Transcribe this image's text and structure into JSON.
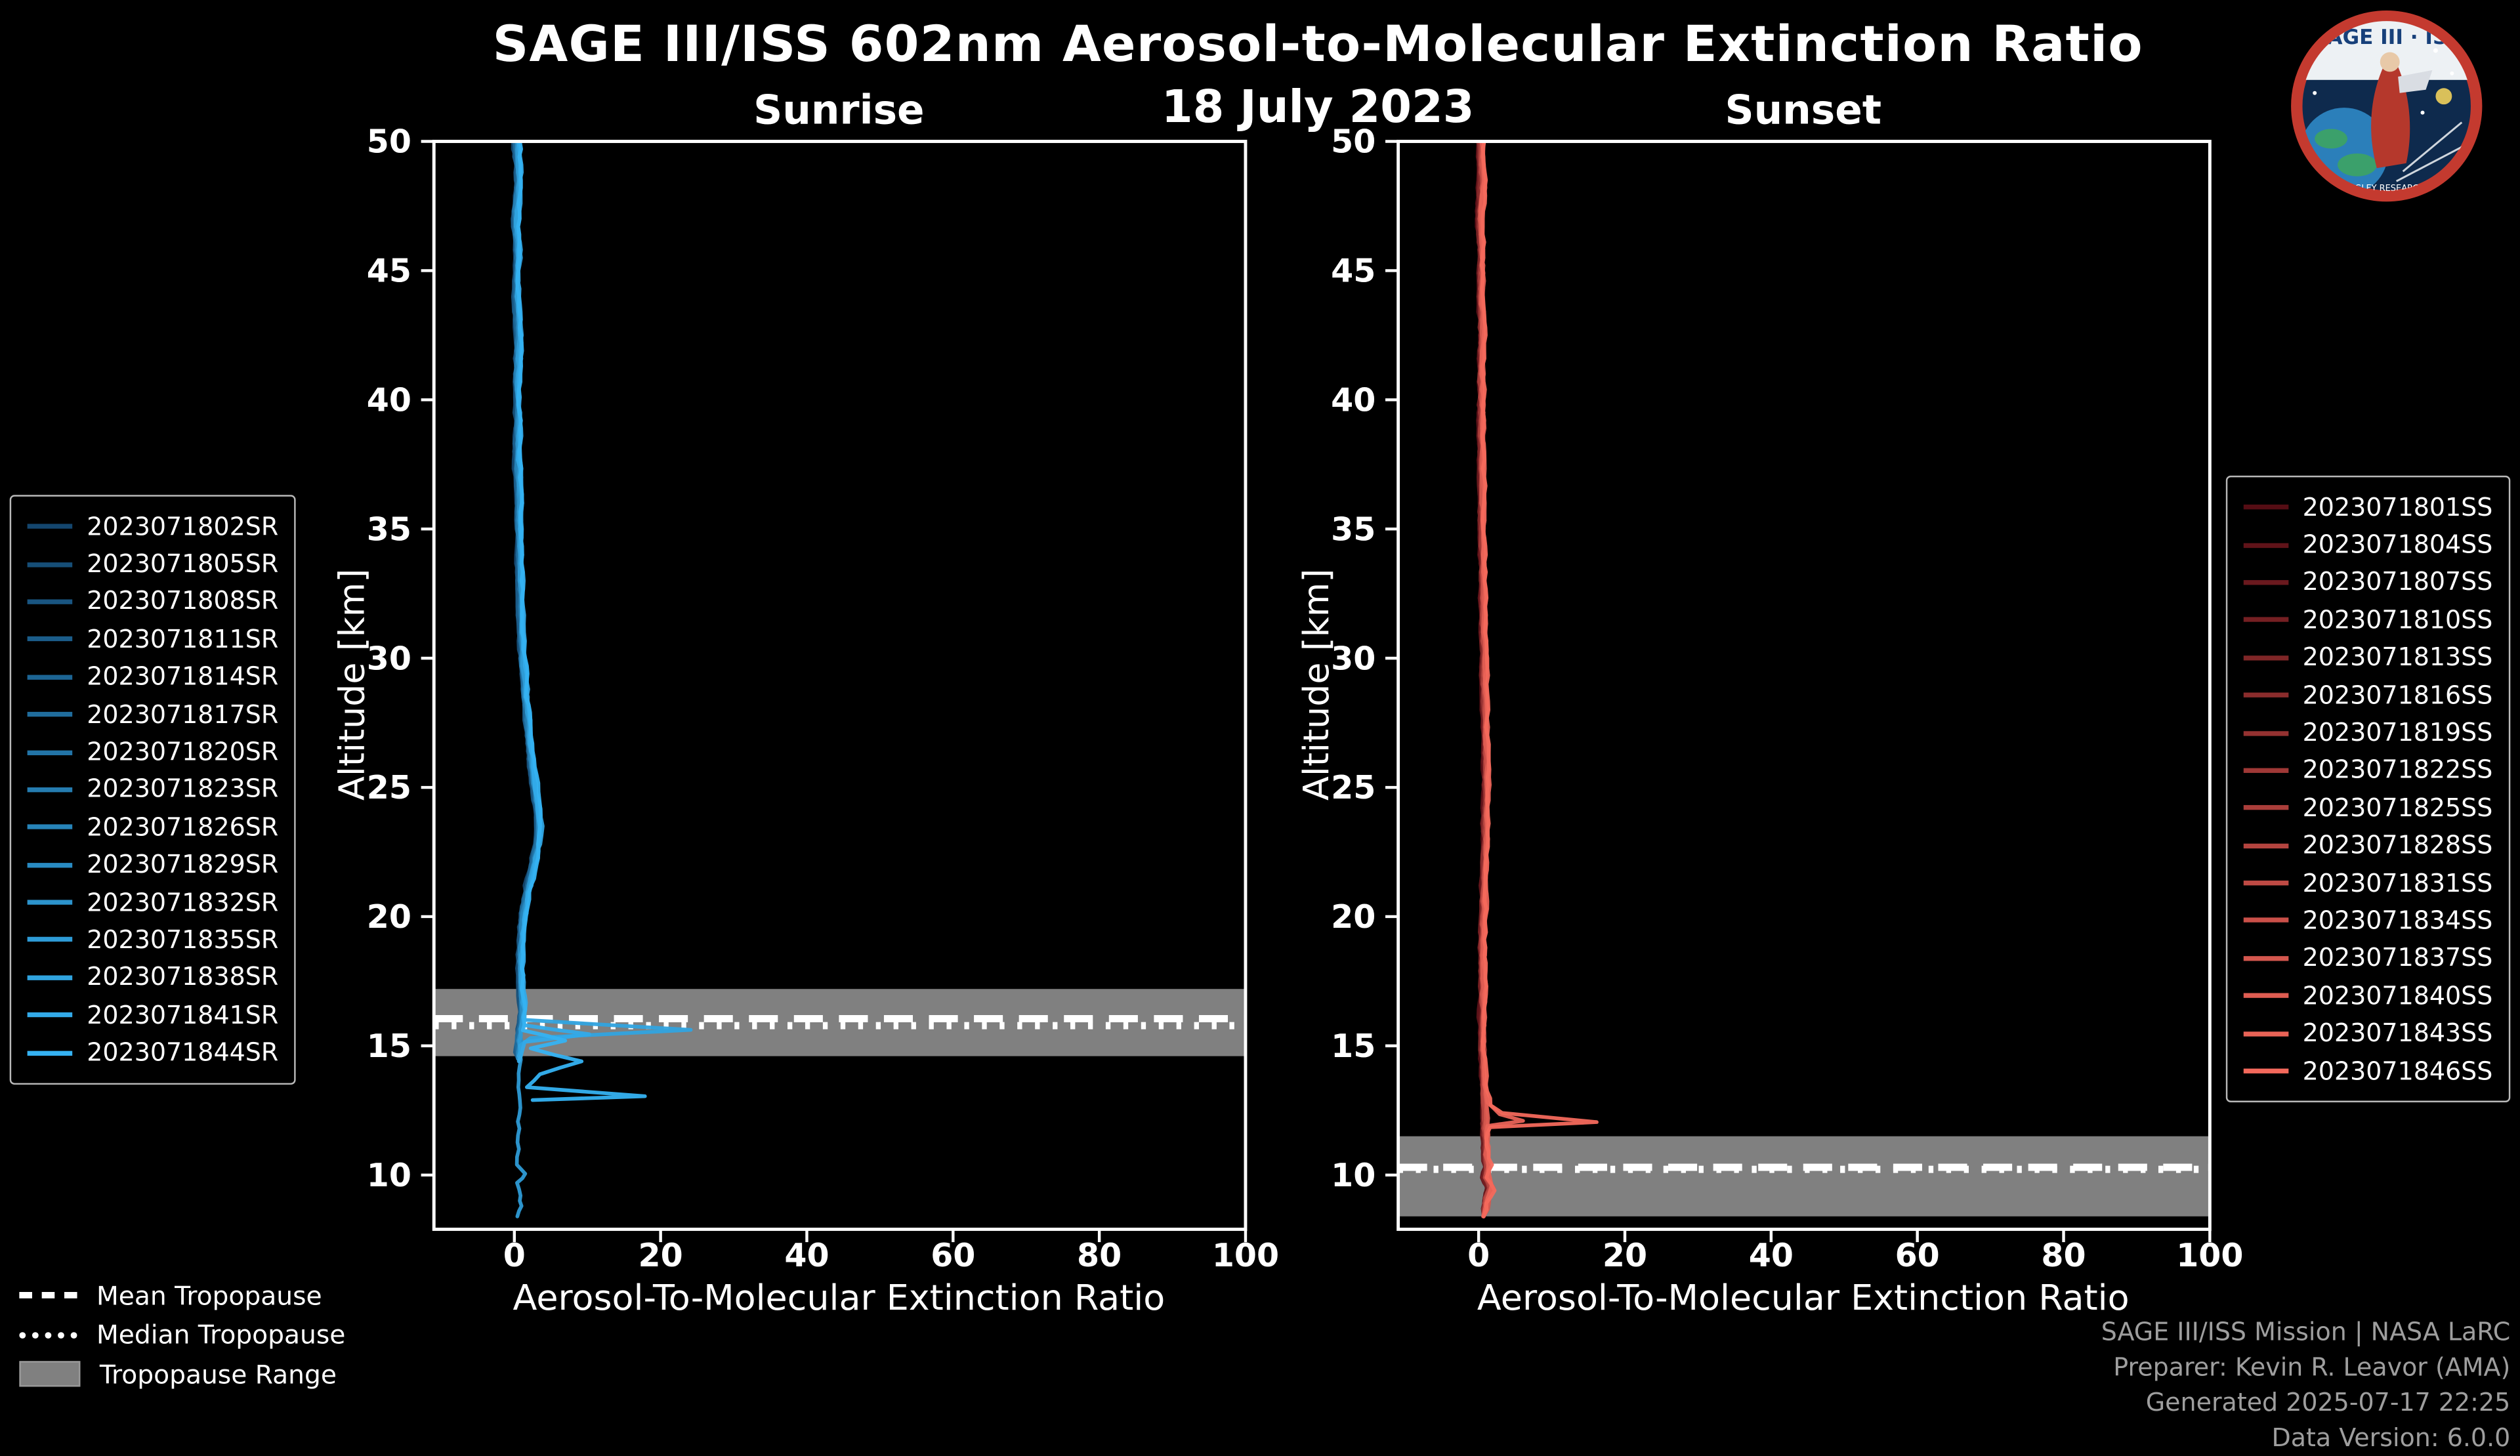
{
  "title": "SAGE III/ISS 602nm Aerosol-to-Molecular Extinction Ratio",
  "subtitle": "18 July 2023",
  "logo": {
    "title": "SAGE III · ISS",
    "ring_text": "NASA LANGLEY RESEARCH CENTER"
  },
  "tropopause_legend": [
    {
      "label": "Mean Tropopause",
      "style": "dashed"
    },
    {
      "label": "Median Tropopause",
      "style": "dotted"
    },
    {
      "label": "Tropopause Range",
      "style": "patch"
    }
  ],
  "credits": [
    "SAGE III/ISS Mission | NASA LaRC",
    "Preparer: Kevin R. Leavor (AMA)",
    "Generated 2025-07-17 22:25",
    "Data Version: 6.0.0"
  ],
  "chart_data": [
    {
      "type": "line",
      "title": "Sunrise",
      "xlabel": "Aerosol-To-Molecular Extinction Ratio",
      "ylabel": "Altitude [km]",
      "xlim": [
        -11,
        100
      ],
      "ylim": [
        7.9,
        50
      ],
      "xticks": [
        0,
        20,
        40,
        60,
        80,
        100
      ],
      "yticks": [
        10,
        15,
        20,
        25,
        30,
        35,
        40,
        45,
        50
      ],
      "color_scale": [
        "#14466e",
        "#35b2f2"
      ],
      "tropopause": {
        "range": [
          14.6,
          17.2
        ],
        "mean": 16.05,
        "median": 15.78
      },
      "base_profile": [
        [
          0.3,
          50
        ],
        [
          0.6,
          48.5
        ],
        [
          0.2,
          47
        ],
        [
          0.5,
          45.5
        ],
        [
          0.3,
          44
        ],
        [
          0.6,
          42.5
        ],
        [
          0.4,
          41
        ],
        [
          0.5,
          39.5
        ],
        [
          0.4,
          38
        ],
        [
          0.6,
          36
        ],
        [
          0.7,
          34
        ],
        [
          0.9,
          32
        ],
        [
          1.1,
          30
        ],
        [
          1.5,
          28.5
        ],
        [
          2.0,
          27
        ],
        [
          2.5,
          25.5
        ],
        [
          3.0,
          24.5
        ],
        [
          3.4,
          23.5
        ],
        [
          3.2,
          22.8
        ],
        [
          2.6,
          22
        ],
        [
          2.0,
          21.2
        ],
        [
          1.4,
          20.4
        ],
        [
          1.0,
          19.6
        ],
        [
          0.9,
          18.8
        ],
        [
          0.8,
          18
        ],
        [
          0.9,
          17.2
        ],
        [
          1.1,
          16.4
        ],
        [
          1.0,
          15.9
        ],
        [
          0.7,
          15.4
        ],
        [
          0.6,
          15
        ],
        [
          0.5,
          14.5
        ]
      ],
      "series": [
        {
          "name": "2023071802SR"
        },
        {
          "name": "2023071805SR"
        },
        {
          "name": "2023071808SR"
        },
        {
          "name": "2023071811SR"
        },
        {
          "name": "2023071814SR"
        },
        {
          "name": "2023071817SR"
        },
        {
          "name": "2023071820SR"
        },
        {
          "name": "2023071823SR"
        },
        {
          "name": "2023071826SR"
        },
        {
          "name": "2023071829SR"
        },
        {
          "name": "2023071832SR"
        },
        {
          "name": "2023071835SR",
          "tail_from": 14.6,
          "tail": [
            [
              0.5,
              14.2
            ],
            [
              0.4,
              13.4
            ],
            [
              0.5,
              12.6
            ],
            [
              0.4,
              11.8
            ],
            [
              0.3,
              11.0
            ],
            [
              0.3,
              10.4
            ],
            [
              1.3,
              10.05
            ],
            [
              0.2,
              9.7
            ],
            [
              0.5,
              9.2
            ],
            [
              0.8,
              8.8
            ],
            [
              0.4,
              8.4
            ]
          ]
        },
        {
          "name": "2023071838SR",
          "tail_from": 16.2,
          "tail": [
            [
              1.2,
              16.0
            ],
            [
              24,
              15.62
            ],
            [
              2.0,
              15.3
            ],
            [
              0.7,
              15.0
            ],
            [
              0.6,
              14.6
            ]
          ]
        },
        {
          "name": "2023071841SR",
          "tail_from": 16.0,
          "tail": [
            [
              1.0,
              15.8
            ],
            [
              10,
              15.45
            ],
            [
              1.0,
              15.15
            ],
            [
              0.8,
              14.8
            ],
            [
              0.6,
              14.4
            ]
          ]
        },
        {
          "name": "2023071844SR",
          "tail_from": 16.2,
          "tail": [
            [
              1.0,
              16.0
            ],
            [
              0.8,
              15.6
            ],
            [
              7,
              15.2
            ],
            [
              2,
              14.9
            ],
            [
              9,
              14.4
            ],
            [
              3,
              13.9
            ],
            [
              1.5,
              13.4
            ],
            [
              18,
              13.05
            ],
            [
              2.5,
              12.9
            ]
          ]
        }
      ]
    },
    {
      "type": "line",
      "title": "Sunset",
      "xlabel": "Aerosol-To-Molecular Extinction Ratio",
      "ylabel": "Altitude [km]",
      "xlim": [
        -11,
        100
      ],
      "ylim": [
        7.9,
        50
      ],
      "xticks": [
        0,
        20,
        40,
        60,
        80,
        100
      ],
      "yticks": [
        10,
        15,
        20,
        25,
        30,
        35,
        40,
        45,
        50
      ],
      "color_scale": [
        "#550d14",
        "#f4695c"
      ],
      "tropopause": {
        "range": [
          8.4,
          11.5
        ],
        "mean": 10.3,
        "median": 10.22
      },
      "base_profile": [
        [
          0.3,
          50
        ],
        [
          0.5,
          48.5
        ],
        [
          0.2,
          47
        ],
        [
          0.4,
          45.5
        ],
        [
          0.3,
          44
        ],
        [
          0.5,
          42.5
        ],
        [
          0.3,
          41
        ],
        [
          0.4,
          39.5
        ],
        [
          0.4,
          38
        ],
        [
          0.5,
          36
        ],
        [
          0.5,
          34
        ],
        [
          0.6,
          32
        ],
        [
          0.7,
          30
        ],
        [
          0.8,
          28
        ],
        [
          1.0,
          26
        ],
        [
          1.0,
          24.5
        ],
        [
          0.9,
          23
        ],
        [
          0.8,
          21.5
        ],
        [
          0.6,
          20
        ],
        [
          0.5,
          18.5
        ],
        [
          0.5,
          17
        ],
        [
          0.5,
          15.5
        ],
        [
          0.6,
          14.5
        ],
        [
          0.7,
          13.5
        ],
        [
          0.8,
          12.8
        ],
        [
          0.9,
          12.2
        ],
        [
          0.8,
          11.8
        ],
        [
          1.0,
          11.3
        ],
        [
          0.9,
          10.8
        ],
        [
          1.2,
          10.3
        ],
        [
          0.9,
          9.9
        ],
        [
          1.6,
          9.5
        ],
        [
          1.1,
          9.1
        ],
        [
          0.9,
          8.7
        ],
        [
          0.7,
          8.4
        ]
      ],
      "series": [
        {
          "name": "2023071801SS"
        },
        {
          "name": "2023071804SS"
        },
        {
          "name": "2023071807SS"
        },
        {
          "name": "2023071810SS"
        },
        {
          "name": "2023071813SS"
        },
        {
          "name": "2023071816SS"
        },
        {
          "name": "2023071819SS"
        },
        {
          "name": "2023071822SS"
        },
        {
          "name": "2023071825SS"
        },
        {
          "name": "2023071828SS"
        },
        {
          "name": "2023071831SS"
        },
        {
          "name": "2023071834SS"
        },
        {
          "name": "2023071837SS"
        },
        {
          "name": "2023071840SS"
        },
        {
          "name": "2023071843SS",
          "tail_from": 12.6,
          "tail": [
            [
              2.5,
              12.35
            ],
            [
              6.0,
              12.1
            ],
            [
              1.0,
              11.9
            ],
            [
              0.8,
              11.4
            ],
            [
              1.2,
              10.8
            ],
            [
              0.9,
              10.2
            ],
            [
              1.5,
              9.6
            ],
            [
              0.8,
              9.0
            ],
            [
              0.6,
              8.4
            ]
          ]
        },
        {
          "name": "2023071846SS",
          "tail_from": 13.0,
          "tail": [
            [
              1.5,
              12.7
            ],
            [
              3.0,
              12.4
            ],
            [
              16,
              12.05
            ],
            [
              1.2,
              11.85
            ],
            [
              0.8,
              11.4
            ],
            [
              1.0,
              10.9
            ],
            [
              1.4,
              10.4
            ],
            [
              1.0,
              9.9
            ],
            [
              1.8,
              9.4
            ],
            [
              0.9,
              8.9
            ],
            [
              0.7,
              8.4
            ]
          ]
        }
      ]
    }
  ]
}
